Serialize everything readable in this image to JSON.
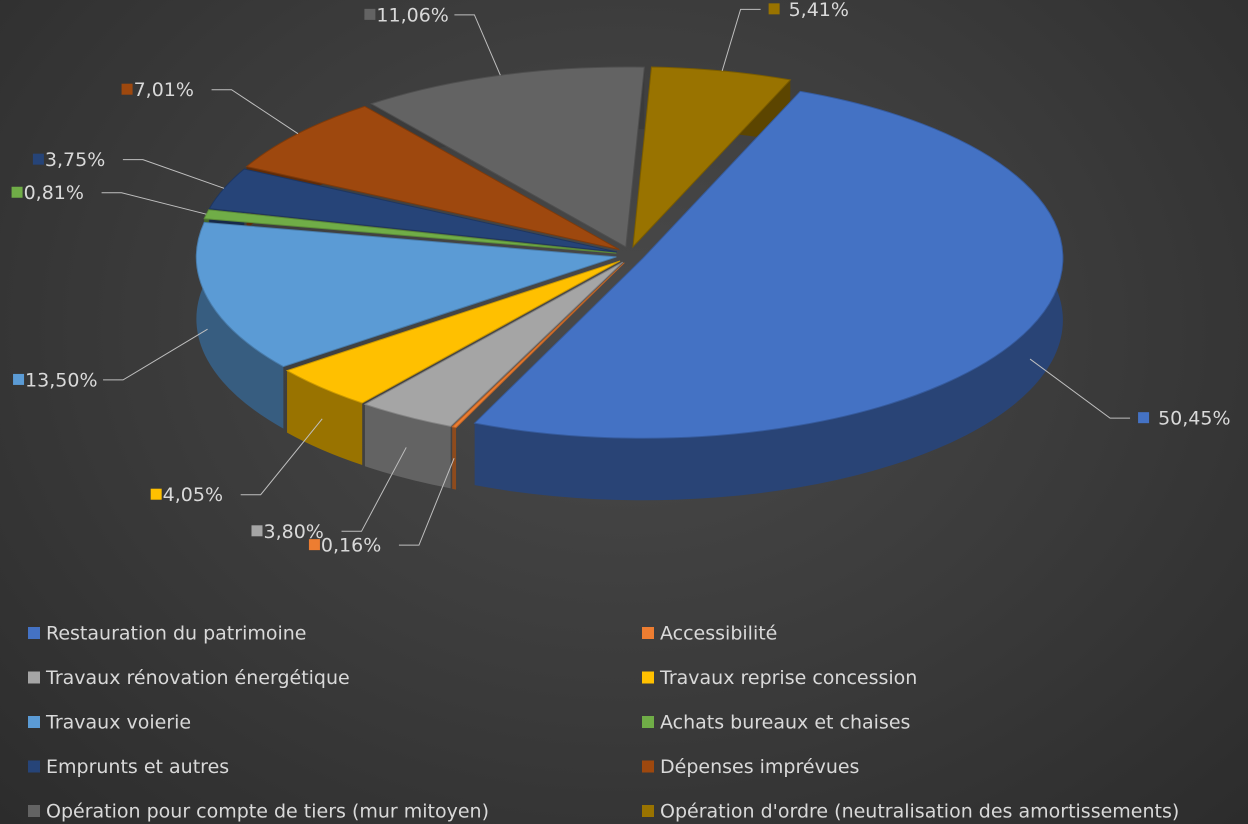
{
  "chart_data": {
    "type": "pie",
    "categories": [
      "Restauration du patrimoine",
      "Accessibilité",
      "Travaux rénovation énergétique",
      "Travaux reprise concession",
      "Travaux voierie",
      "Achats bureaux et chaises",
      "Emprunts et autres",
      "Dépenses imprévues",
      "Opération pour compte de tiers (mur mitoyen)",
      "Opération d'ordre (neutralisation des amortissements)"
    ],
    "values": [
      50.45,
      0.16,
      3.8,
      4.05,
      13.5,
      0.81,
      3.75,
      7.01,
      11.06,
      5.41
    ],
    "value_labels": [
      "50,45%",
      "0,16%",
      "3,80%",
      "4,05%",
      "13,50%",
      "0,81%",
      "3,75%",
      "7,01%",
      "11,06%",
      "5,41%"
    ],
    "colors": [
      "#4472c4",
      "#ed7d31",
      "#a5a5a5",
      "#ffc000",
      "#5b9bd5",
      "#70ad47",
      "#264478",
      "#9e480e",
      "#636363",
      "#997300"
    ],
    "legend": "bottom"
  }
}
